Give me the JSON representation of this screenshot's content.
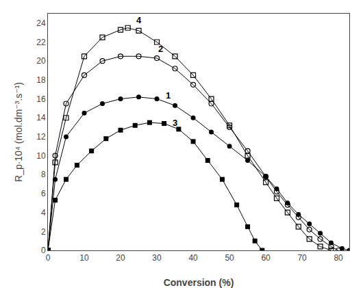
{
  "chart_data": {
    "type": "line",
    "xlabel": "Conversion (%)",
    "ylabel": "R_p·10⁴ (mol.dm⁻³.s⁻¹)",
    "xlim": [
      0,
      83
    ],
    "ylim": [
      0,
      25
    ],
    "xticks": [
      0,
      10,
      20,
      30,
      40,
      50,
      60,
      70,
      80
    ],
    "yticks": [
      0,
      2,
      4,
      6,
      8,
      10,
      12,
      14,
      16,
      18,
      20,
      22,
      24
    ],
    "grid": false,
    "series": [
      {
        "name": "3",
        "color": "black",
        "marker": "square",
        "x": [
          0,
          2,
          5,
          8,
          12,
          16,
          20,
          24,
          28,
          32,
          36,
          40,
          44,
          48,
          52,
          55,
          57,
          59
        ],
        "values": [
          0,
          5.3,
          7.5,
          9.0,
          10.5,
          11.8,
          12.7,
          13.2,
          13.5,
          13.4,
          12.8,
          11.5,
          9.5,
          7.5,
          4.8,
          2.5,
          1.0,
          0.0
        ]
      },
      {
        "name": "1",
        "color": "black",
        "marker": "circle",
        "x": [
          0,
          2,
          5,
          10,
          15,
          20,
          25,
          30,
          35,
          40,
          45,
          50,
          55,
          60,
          63,
          66,
          69,
          72,
          75,
          78,
          81,
          83
        ],
        "values": [
          0,
          7.5,
          12.0,
          14.5,
          15.5,
          16.0,
          16.2,
          16.0,
          15.3,
          14.0,
          12.5,
          11.0,
          9.5,
          7.8,
          6.5,
          5.0,
          3.8,
          2.8,
          1.8,
          0.8,
          0.2,
          0.0
        ]
      },
      {
        "name": "2",
        "color": "black",
        "marker": "circle-open",
        "x": [
          0,
          2,
          5,
          10,
          15,
          20,
          25,
          30,
          35,
          40,
          45,
          50,
          55,
          60,
          63,
          66,
          69,
          72,
          75,
          78,
          80
        ],
        "values": [
          0,
          10.0,
          15.5,
          18.5,
          20.0,
          20.5,
          20.5,
          20.3,
          19.2,
          17.5,
          15.5,
          13.0,
          10.5,
          7.8,
          6.2,
          4.8,
          3.5,
          2.2,
          1.2,
          0.4,
          0.0
        ]
      },
      {
        "name": "4",
        "color": "black",
        "marker": "square-open",
        "x": [
          0,
          2,
          5,
          10,
          15,
          20,
          22,
          25,
          30,
          35,
          40,
          45,
          50,
          55,
          60,
          63,
          66,
          69,
          72,
          75,
          78
        ],
        "values": [
          0,
          9.3,
          14.0,
          20.5,
          22.5,
          23.3,
          23.5,
          23.2,
          22.0,
          20.5,
          18.5,
          16.0,
          13.2,
          10.0,
          7.2,
          5.5,
          4.0,
          2.5,
          1.2,
          0.4,
          0.0
        ]
      }
    ],
    "annotations": [
      {
        "text": "3",
        "x": 34,
        "y": 12.8
      },
      {
        "text": "1",
        "x": 32,
        "y": 15.7
      },
      {
        "text": "2",
        "x": 30,
        "y": 20.6
      },
      {
        "text": "4",
        "x": 24,
        "y": 23.6
      }
    ]
  }
}
